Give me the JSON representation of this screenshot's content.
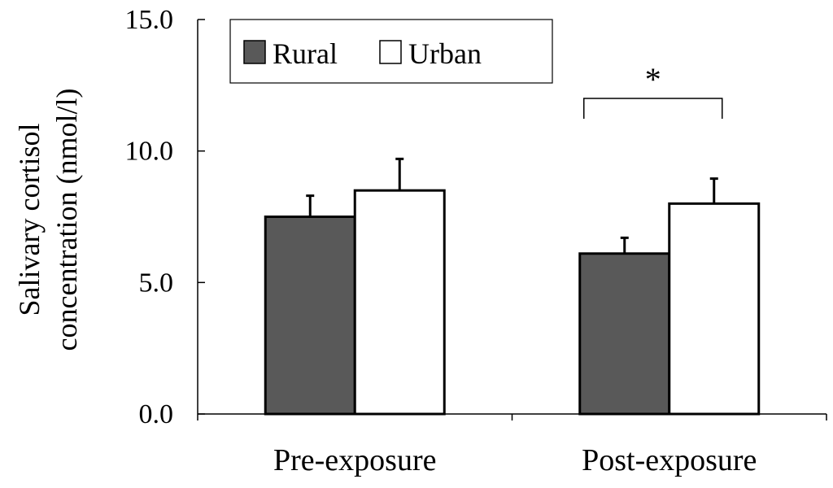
{
  "chart_data": {
    "type": "bar",
    "categories": [
      "Pre-exposure",
      "Post-exposure"
    ],
    "series": [
      {
        "name": "Rural",
        "color": "#595959",
        "values": [
          7.5,
          6.1
        ],
        "errors": [
          0.8,
          0.6
        ]
      },
      {
        "name": "Urban",
        "color": "#ffffff",
        "values": [
          8.5,
          8.0
        ],
        "errors": [
          1.2,
          0.95
        ]
      }
    ],
    "ylabel_line1": "Salivary cortisol",
    "ylabel_line2": "concentration (nmol/l)",
    "ylim": [
      0,
      15
    ],
    "yticks": [
      0,
      5,
      10,
      15
    ],
    "ytick_labels": [
      "0.0",
      "5.0",
      "10.0",
      "15.0"
    ],
    "legend_position": "top-left",
    "grid": false,
    "annotations": [
      {
        "text": "*",
        "category": "Post-exposure",
        "between": [
          "Rural",
          "Urban"
        ],
        "bracket_level": 12.0
      }
    ]
  }
}
